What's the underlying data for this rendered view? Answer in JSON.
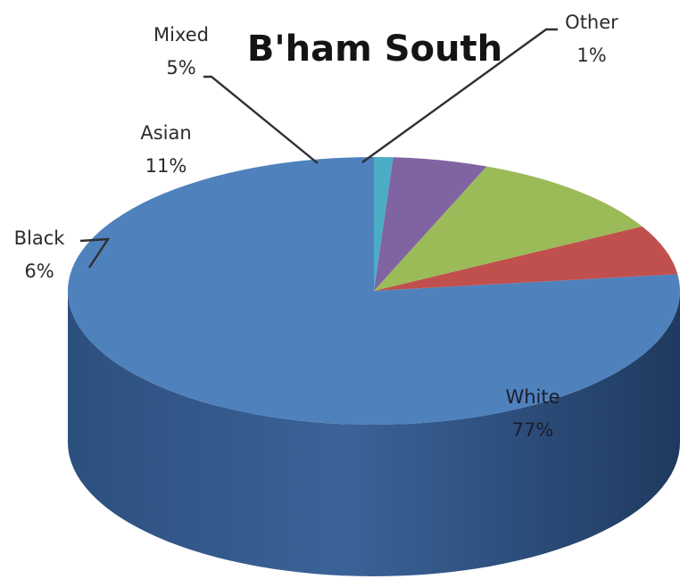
{
  "chart_data": {
    "type": "pie",
    "title": "B'ham South",
    "categories": [
      "White",
      "Black",
      "Asian",
      "Mixed",
      "Other"
    ],
    "values": [
      77,
      6,
      11,
      5,
      1
    ],
    "value_labels": [
      "77%",
      "6%",
      "11%",
      "5%",
      "1%"
    ],
    "colors": [
      "#4f81bd",
      "#c0504d",
      "#9bbb59",
      "#8064a2",
      "#4bacc6"
    ],
    "style": "3d",
    "legend": "none"
  }
}
